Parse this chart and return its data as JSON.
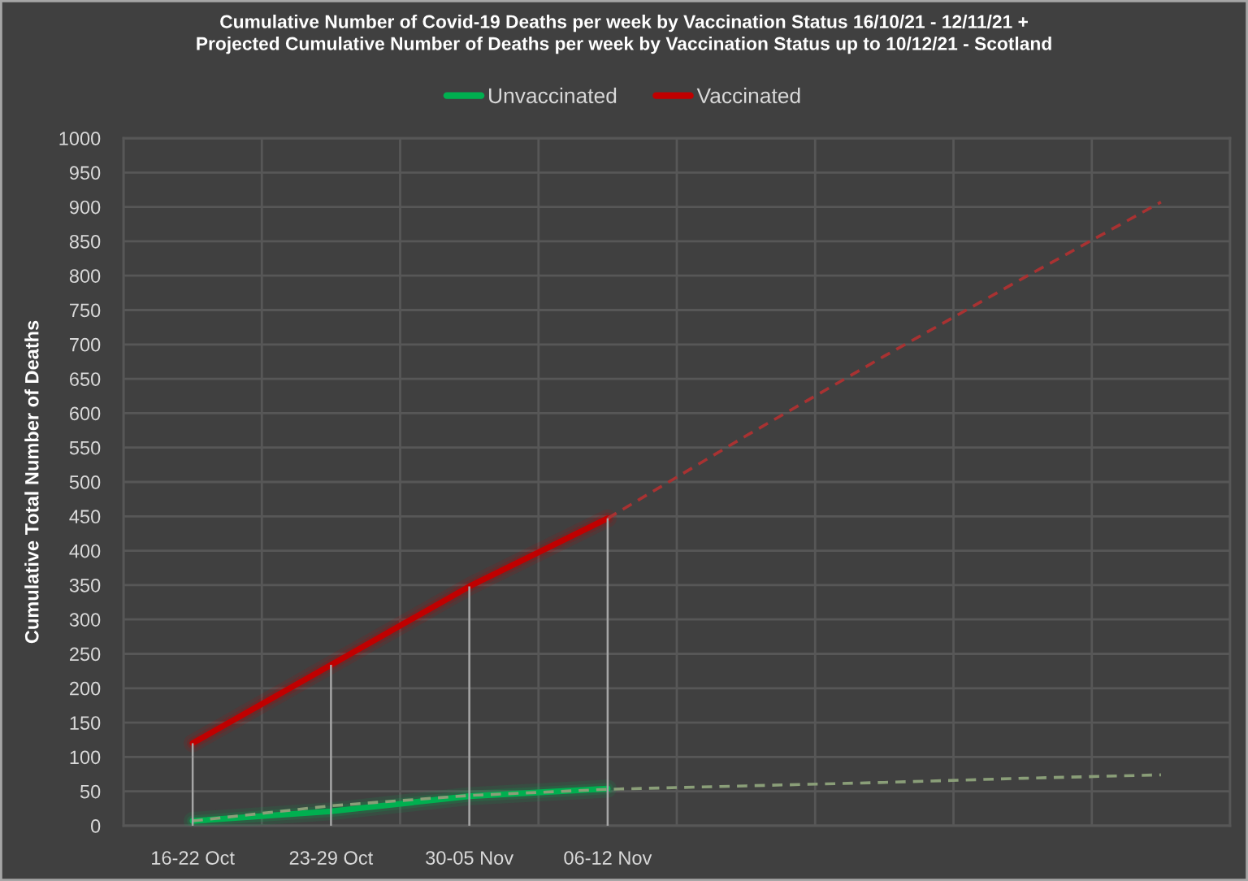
{
  "chart_data": {
    "type": "line",
    "title": "Cumulative Number of Covid-19 Deaths per week by Vaccination Status 16/10/21 - 12/11/21 +\nProjected Cumulative Number of Deaths per week by Vaccination Status up to 10/12/21 - Scotland",
    "ylabel": "Cumulative Total Number of Deaths",
    "categories": [
      "16-22 Oct",
      "23-29 Oct",
      "30-05 Nov",
      "06-12 Nov",
      null,
      null,
      null,
      null
    ],
    "series": [
      {
        "name": "Unvaccinated",
        "color": "#00b050",
        "line_style": "solid",
        "values": [
          7,
          21,
          43,
          54,
          null,
          null,
          null,
          null
        ]
      },
      {
        "color": "#8a9e78",
        "line_style": "dashed",
        "values": [
          7,
          29,
          44,
          53,
          58,
          63,
          69,
          74
        ]
      },
      {
        "name": "Vaccinated",
        "color": "#c00000",
        "line_style": "solid",
        "values": [
          120,
          234,
          348,
          447,
          null,
          null,
          null,
          null
        ],
        "errors": [
          [
            0,
            120
          ],
          [
            0,
            234
          ],
          [
            0,
            348
          ],
          [
            0,
            447
          ],
          null,
          null,
          null,
          null
        ]
      },
      {
        "color": "#a83232",
        "line_style": "dashed",
        "values": [
          null,
          null,
          null,
          447,
          567,
          683,
          796,
          907
        ]
      }
    ],
    "ylim": [
      0,
      1000
    ],
    "yticks": [
      0,
      50,
      100,
      150,
      200,
      250,
      300,
      350,
      400,
      450,
      500,
      550,
      600,
      650,
      700,
      750,
      800,
      850,
      900,
      950,
      1000
    ],
    "grid": true,
    "legend": "top",
    "marker": "none"
  }
}
